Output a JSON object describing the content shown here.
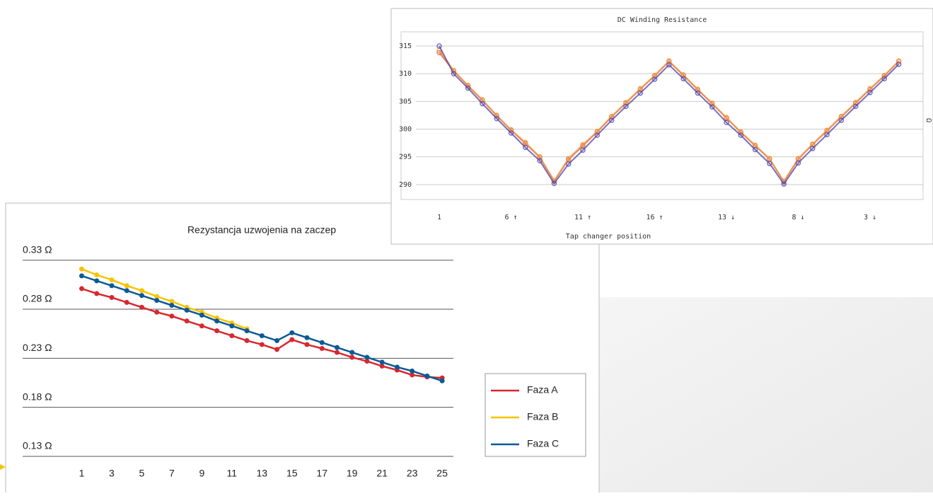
{
  "chart_data": [
    {
      "type": "line",
      "title": "Rezystancja uzwojenia na zaczep",
      "x": [
        1,
        2,
        3,
        4,
        5,
        6,
        7,
        8,
        9,
        10,
        11,
        12,
        13,
        14,
        15,
        16,
        17,
        18,
        19,
        20,
        21,
        22,
        23,
        24,
        25
      ],
      "xlim": [
        -0.2,
        25.75
      ],
      "xticks": [
        1,
        3,
        5,
        7,
        9,
        11,
        13,
        15,
        17,
        19,
        21,
        23,
        25
      ],
      "ylim": [
        0.13,
        0.35
      ],
      "yticks": [
        {
          "value": 0.13,
          "label": "0.13 Ω"
        },
        {
          "value": 0.18,
          "label": "0.18 Ω"
        },
        {
          "value": 0.23,
          "label": "0.23 Ω"
        },
        {
          "value": 0.28,
          "label": "0.28 Ω"
        },
        {
          "value": 0.33,
          "label": "0.33 Ω"
        }
      ],
      "grid": true,
      "legend": "right",
      "series": [
        {
          "name": "Faza A",
          "color": "#d7282f",
          "values": [
            0.301,
            0.296,
            0.292,
            0.287,
            0.282,
            0.277,
            0.273,
            0.268,
            0.263,
            0.258,
            0.253,
            0.248,
            0.244,
            0.239,
            0.249,
            0.244,
            0.24,
            0.236,
            0.231,
            0.227,
            0.222,
            0.218,
            0.213,
            0.211,
            0.21
          ]
        },
        {
          "name": "Faza B",
          "color": "#f5c400",
          "values": [
            0.321,
            0.315,
            0.31,
            0.304,
            0.299,
            0.293,
            0.288,
            0.282,
            0.277,
            0.271,
            0.266,
            0.26,
            null,
            null,
            null,
            null,
            null,
            null,
            null,
            null,
            null,
            null,
            null,
            null,
            null
          ]
        },
        {
          "name": "Faza C",
          "color": "#0b5a96",
          "values": [
            0.314,
            0.309,
            0.304,
            0.299,
            0.294,
            0.289,
            0.284,
            0.279,
            0.274,
            0.268,
            0.263,
            0.258,
            0.253,
            0.248,
            0.256,
            0.251,
            0.246,
            0.241,
            0.236,
            0.231,
            0.226,
            0.221,
            0.217,
            0.212,
            0.207
          ]
        }
      ]
    },
    {
      "type": "line",
      "title": "DC Winding Resistance",
      "x_label": "Tap changer position",
      "y_label": "Ω",
      "categories": [
        "1",
        null,
        null,
        null,
        null,
        "6 ↑",
        null,
        null,
        null,
        null,
        "11 ↑",
        null,
        null,
        null,
        null,
        "16 ↑",
        null,
        null,
        null,
        null,
        "13 ↓",
        null,
        null,
        null,
        null,
        "8 ↓",
        null,
        null,
        null,
        null,
        "3 ↓",
        null,
        null
      ],
      "ylim": [
        287.3,
        317.55
      ],
      "yticks": [
        290,
        295,
        300,
        305,
        310,
        315
      ],
      "grid": true,
      "series": [
        {
          "color": "#e0604a",
          "values": [
            313.8,
            310.5,
            307.8,
            305.2,
            302.4,
            299.8,
            297.4,
            294.9,
            290.6,
            294.5,
            297,
            299.5,
            302.2,
            304.7,
            307.2,
            309.6,
            312.2,
            309.7,
            307.1,
            304.6,
            302,
            299.4,
            297,
            294.6,
            290.5,
            294.6,
            297.2,
            299.7,
            302.2,
            304.7,
            307.2,
            309.6,
            312.2
          ]
        },
        {
          "color": "#f09a40",
          "values": [
            314.2,
            310.6,
            307.9,
            305.3,
            302.5,
            299.9,
            297.6,
            295,
            290.7,
            294.7,
            297.2,
            299.6,
            302.3,
            304.8,
            307.3,
            309.7,
            312.3,
            309.8,
            307.2,
            304.7,
            302.1,
            299.5,
            297.1,
            294.7,
            290.6,
            294.7,
            297.3,
            299.8,
            302.3,
            304.8,
            307.3,
            309.7,
            312.3
          ]
        },
        {
          "color": "#5a4aa8",
          "values": [
            315,
            310,
            307.4,
            304.6,
            301.9,
            299.3,
            296.7,
            294.3,
            290.2,
            293.7,
            296.2,
            298.9,
            301.6,
            304.1,
            306.5,
            309,
            311.6,
            309.1,
            306.5,
            304,
            301.2,
            298.9,
            296.3,
            293.8,
            290.1,
            293.9,
            296.5,
            299,
            301.6,
            304.1,
            306.6,
            309.1,
            311.7
          ]
        }
      ]
    }
  ]
}
